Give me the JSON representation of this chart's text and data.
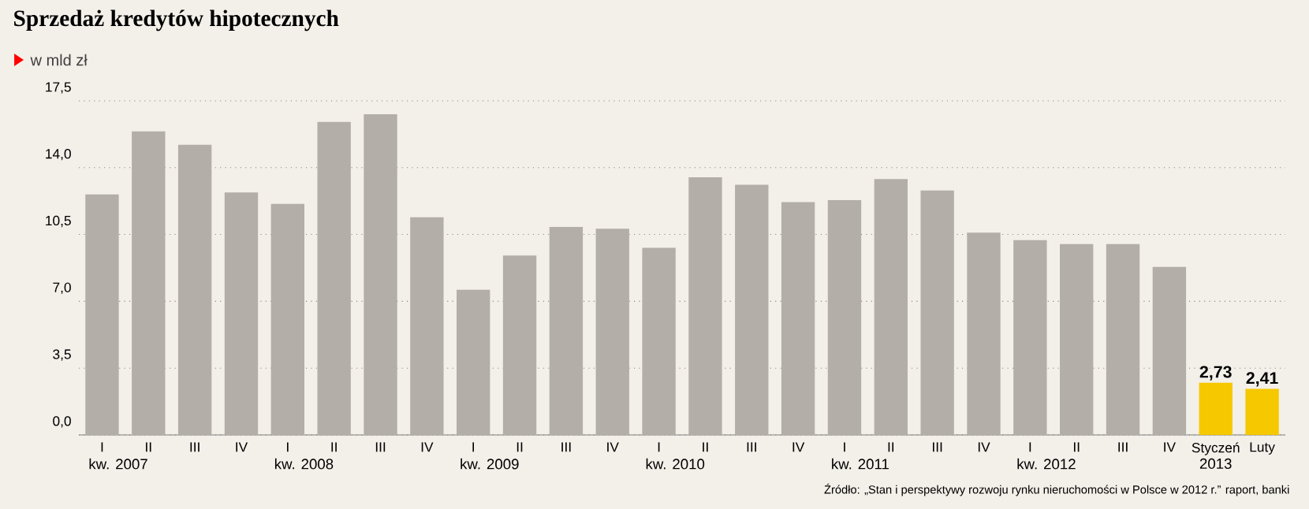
{
  "chart_data": {
    "type": "bar",
    "title": "Sprzedaż kredytów hipotecznych",
    "subtitle": "w mld zł",
    "categories": [
      "I",
      "II",
      "III",
      "IV",
      "I",
      "II",
      "III",
      "IV",
      "I",
      "II",
      "III",
      "IV",
      "I",
      "II",
      "III",
      "IV",
      "I",
      "II",
      "III",
      "IV",
      "I",
      "II",
      "III",
      "IV",
      "Styczeń",
      "Luty"
    ],
    "values": [
      12.6,
      15.9,
      15.2,
      12.7,
      12.1,
      16.4,
      16.8,
      11.4,
      7.6,
      9.4,
      10.9,
      10.8,
      9.8,
      13.5,
      13.1,
      12.2,
      12.3,
      13.4,
      12.8,
      10.6,
      10.2,
      10.0,
      10.0,
      8.8,
      2.73,
      2.41
    ],
    "colors": [
      "#b3afa8",
      "#b3afa8",
      "#b3afa8",
      "#b3afa8",
      "#b3afa8",
      "#b3afa8",
      "#b3afa8",
      "#b3afa8",
      "#b3afa8",
      "#b3afa8",
      "#b3afa8",
      "#b3afa8",
      "#b3afa8",
      "#b3afa8",
      "#b3afa8",
      "#b3afa8",
      "#b3afa8",
      "#b3afa8",
      "#b3afa8",
      "#b3afa8",
      "#b3afa8",
      "#b3afa8",
      "#b3afa8",
      "#b3afa8",
      "#f5c800",
      "#f5c800"
    ],
    "value_labels": [
      null,
      null,
      null,
      null,
      null,
      null,
      null,
      null,
      null,
      null,
      null,
      null,
      null,
      null,
      null,
      null,
      null,
      null,
      null,
      null,
      null,
      null,
      null,
      null,
      "2,73",
      "2,41"
    ],
    "ylim": [
      0,
      17.5
    ],
    "yticks": [
      {
        "value": 0,
        "label": "0,0"
      },
      {
        "value": 3.5,
        "label": "3,5"
      },
      {
        "value": 7,
        "label": "7,0"
      },
      {
        "value": 10.5,
        "label": "10,5"
      },
      {
        "value": 14,
        "label": "14,0"
      },
      {
        "value": 17.5,
        "label": "17,5"
      }
    ],
    "grid": "y",
    "annotations": [
      "kw. 2007",
      "kw. 2008",
      "kw. 2009",
      "kw. 2010",
      "kw. 2011",
      "kw. 2012",
      "2013",
      "Źródło: „Stan i perspektywy rozwoju rynku nieruchomości w Polsce w 2012 r.” raport, banki"
    ]
  }
}
